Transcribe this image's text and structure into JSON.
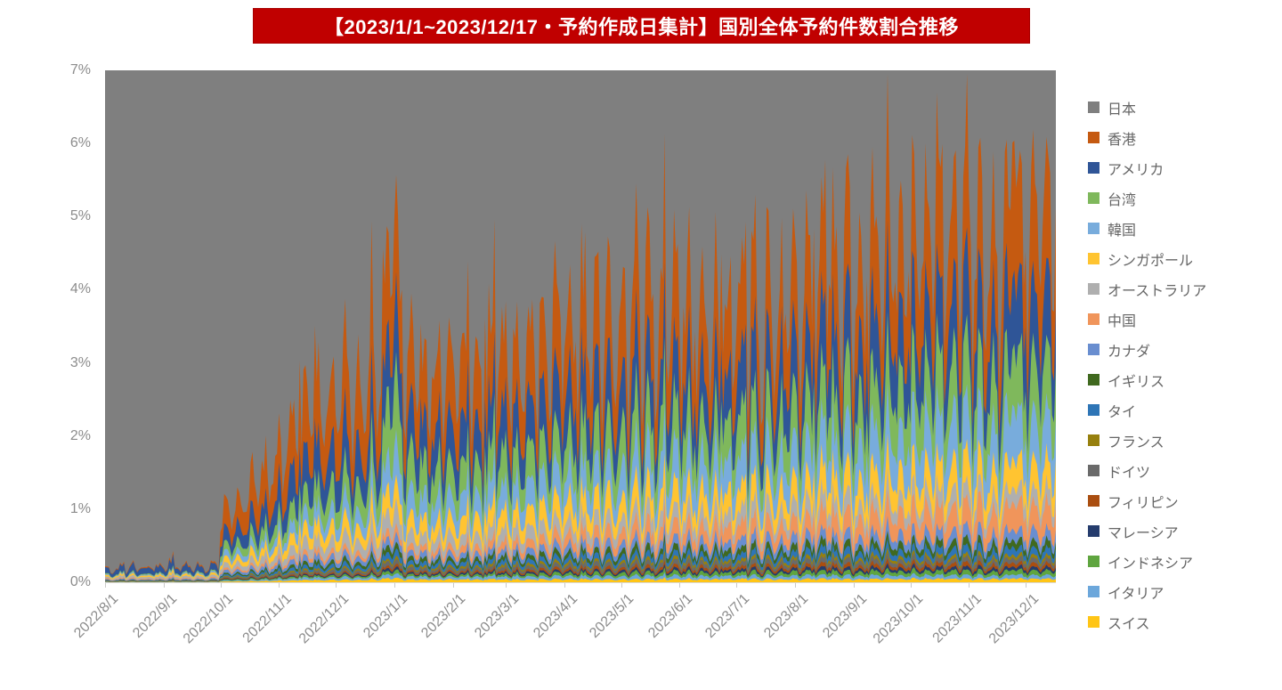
{
  "title": {
    "text": "【2023/1/1~2023/12/17・予約作成日集計】国別全体予約件数割合推移",
    "background": "#C00000",
    "text_color": "#FFFFFF"
  },
  "chart_data": {
    "type": "area",
    "stacked": true,
    "title": "【2023/1/1~2023/12/17・予約作成日集計】国別全体予約件数割合推移",
    "xlabel": "",
    "ylabel": "",
    "unit": "%",
    "ylim": [
      0,
      7
    ],
    "y_ticks": [
      "0%",
      "1%",
      "2%",
      "3%",
      "4%",
      "5%",
      "6%",
      "7%"
    ],
    "x_start": "2022/8/1",
    "x_end": "2023/12/17",
    "x_tick_labels": [
      "2022/8/1",
      "2022/9/1",
      "2022/10/1",
      "2022/11/1",
      "2022/12/1",
      "2023/1/1",
      "2023/2/1",
      "2023/3/1",
      "2023/4/1",
      "2023/5/1",
      "2023/6/1",
      "2023/7/1",
      "2023/8/1",
      "2023/9/1",
      "2023/10/1",
      "2023/11/1",
      "2023/12/1"
    ],
    "legend_position": "right",
    "grid": false,
    "japan": {
      "name": "日本",
      "color": "#7F7F7F",
      "note": "remainder of 100% (approx. 94-100%), drawn as plot background above the stack"
    },
    "anchor_dates": [
      "2022/8/1",
      "2022/9/1",
      "2022/9/30",
      "2022/10/1",
      "2022/11/1",
      "2022/12/1",
      "2022/12/24",
      "2023/1/1",
      "2023/1/7",
      "2023/2/1",
      "2023/3/1",
      "2023/4/1",
      "2023/5/1",
      "2023/6/1",
      "2023/7/1",
      "2023/8/1",
      "2023/9/1",
      "2023/10/1",
      "2023/11/1",
      "2023/12/1",
      "2023/12/17"
    ],
    "series": [
      {
        "name": "香港",
        "color": "#C55A11",
        "anchors": [
          0.01,
          0.015,
          0.02,
          0.25,
          0.55,
          0.8,
          0.95,
          1.45,
          0.85,
          0.85,
          0.88,
          0.95,
          1.05,
          0.95,
          0.9,
          1.0,
          1.1,
          1.15,
          1.2,
          1.25,
          1.3
        ]
      },
      {
        "name": "アメリカ",
        "color": "#2F5597",
        "anchors": [
          0.07,
          0.075,
          0.08,
          0.15,
          0.33,
          0.5,
          0.55,
          0.95,
          0.5,
          0.55,
          0.58,
          0.62,
          0.65,
          0.62,
          0.6,
          0.68,
          0.75,
          0.8,
          0.85,
          0.88,
          0.9
        ]
      },
      {
        "name": "台湾",
        "color": "#7FB85C",
        "anchors": [
          0.01,
          0.012,
          0.015,
          0.08,
          0.18,
          0.3,
          0.4,
          0.95,
          0.45,
          0.4,
          0.42,
          0.46,
          0.52,
          0.5,
          0.48,
          0.55,
          0.62,
          0.66,
          0.7,
          0.72,
          0.75
        ]
      },
      {
        "name": "韓国",
        "color": "#78ACDC",
        "anchors": [
          0.01,
          0.012,
          0.015,
          0.06,
          0.12,
          0.2,
          0.25,
          0.55,
          0.3,
          0.3,
          0.32,
          0.36,
          0.4,
          0.4,
          0.4,
          0.45,
          0.52,
          0.55,
          0.58,
          0.6,
          0.62
        ]
      },
      {
        "name": "シンガポール",
        "color": "#FFC431",
        "anchors": [
          0.02,
          0.022,
          0.025,
          0.06,
          0.12,
          0.18,
          0.2,
          0.35,
          0.2,
          0.22,
          0.24,
          0.26,
          0.28,
          0.27,
          0.26,
          0.29,
          0.32,
          0.34,
          0.35,
          0.36,
          0.37
        ]
      },
      {
        "name": "オーストラリア",
        "color": "#AFAFAF",
        "anchors": [
          0.02,
          0.022,
          0.025,
          0.05,
          0.1,
          0.15,
          0.18,
          0.3,
          0.15,
          0.15,
          0.16,
          0.17,
          0.18,
          0.17,
          0.17,
          0.18,
          0.19,
          0.19,
          0.19,
          0.2,
          0.2
        ]
      },
      {
        "name": "中国",
        "color": "#F0955B",
        "anchors": [
          0.01,
          0.01,
          0.012,
          0.02,
          0.04,
          0.06,
          0.07,
          0.12,
          0.07,
          0.08,
          0.1,
          0.13,
          0.16,
          0.17,
          0.18,
          0.21,
          0.25,
          0.28,
          0.3,
          0.32,
          0.33
        ]
      },
      {
        "name": "カナダ",
        "color": "#698ED0",
        "anchors": [
          0.01,
          0.01,
          0.012,
          0.03,
          0.05,
          0.07,
          0.08,
          0.12,
          0.07,
          0.07,
          0.08,
          0.09,
          0.1,
          0.1,
          0.1,
          0.11,
          0.12,
          0.13,
          0.14,
          0.14,
          0.15
        ]
      },
      {
        "name": "イギリス",
        "color": "#40691F",
        "anchors": [
          0.004,
          0.004,
          0.005,
          0.015,
          0.03,
          0.045,
          0.05,
          0.1,
          0.05,
          0.05,
          0.055,
          0.06,
          0.07,
          0.07,
          0.07,
          0.075,
          0.08,
          0.085,
          0.09,
          0.09,
          0.095
        ]
      },
      {
        "name": "タイ",
        "color": "#2E75B6",
        "anchors": [
          0.004,
          0.004,
          0.005,
          0.015,
          0.03,
          0.045,
          0.05,
          0.1,
          0.05,
          0.05,
          0.055,
          0.06,
          0.07,
          0.065,
          0.065,
          0.075,
          0.08,
          0.085,
          0.09,
          0.09,
          0.095
        ]
      },
      {
        "name": "フランス",
        "color": "#97800E",
        "anchors": [
          0.002,
          0.002,
          0.003,
          0.01,
          0.015,
          0.02,
          0.025,
          0.04,
          0.025,
          0.025,
          0.03,
          0.032,
          0.035,
          0.035,
          0.035,
          0.037,
          0.04,
          0.04,
          0.04,
          0.042,
          0.043
        ]
      },
      {
        "name": "ドイツ",
        "color": "#6A6A6A",
        "anchors": [
          0.003,
          0.003,
          0.004,
          0.01,
          0.02,
          0.03,
          0.035,
          0.06,
          0.035,
          0.035,
          0.04,
          0.045,
          0.05,
          0.05,
          0.05,
          0.052,
          0.055,
          0.055,
          0.055,
          0.057,
          0.06
        ]
      },
      {
        "name": "フィリピン",
        "color": "#AA4E10",
        "anchors": [
          0.002,
          0.002,
          0.003,
          0.008,
          0.012,
          0.015,
          0.02,
          0.04,
          0.02,
          0.02,
          0.025,
          0.03,
          0.035,
          0.035,
          0.035,
          0.04,
          0.042,
          0.044,
          0.045,
          0.047,
          0.05
        ]
      },
      {
        "name": "マレーシア",
        "color": "#253C6D",
        "anchors": [
          0.002,
          0.002,
          0.002,
          0.007,
          0.01,
          0.015,
          0.018,
          0.04,
          0.02,
          0.02,
          0.022,
          0.026,
          0.03,
          0.03,
          0.03,
          0.034,
          0.037,
          0.039,
          0.04,
          0.042,
          0.044
        ]
      },
      {
        "name": "インドネシア",
        "color": "#5FA53F",
        "anchors": [
          0.003,
          0.003,
          0.003,
          0.01,
          0.015,
          0.02,
          0.025,
          0.05,
          0.025,
          0.025,
          0.03,
          0.036,
          0.042,
          0.042,
          0.042,
          0.047,
          0.052,
          0.054,
          0.055,
          0.057,
          0.06
        ]
      },
      {
        "name": "イタリア",
        "color": "#6CA7DB",
        "anchors": [
          0.003,
          0.003,
          0.004,
          0.01,
          0.02,
          0.03,
          0.035,
          0.06,
          0.035,
          0.035,
          0.038,
          0.04,
          0.042,
          0.04,
          0.04,
          0.042,
          0.044,
          0.045,
          0.045,
          0.046,
          0.048
        ]
      },
      {
        "name": "スイス",
        "color": "#FFC516",
        "anchors": [
          0.003,
          0.003,
          0.004,
          0.01,
          0.02,
          0.03,
          0.035,
          0.06,
          0.035,
          0.038,
          0.036,
          0.038,
          0.04,
          0.038,
          0.038,
          0.04,
          0.042,
          0.043,
          0.044,
          0.045,
          0.046
        ]
      }
    ],
    "stack_note": "stacking order bottom-to-top is the reverse of the series list; 日本 fills everything above the stack",
    "render_noise": {
      "seed": 20231217,
      "weekly_amp": 0.26,
      "weekly_phase": 0.9,
      "jitter_amp": 0.2,
      "series_jitter": 0.14,
      "spike_prob": 0.035,
      "spike_add": 0.5,
      "soft_clamp_start": 5.85,
      "soft_clamp_slope": 0.33
    }
  }
}
